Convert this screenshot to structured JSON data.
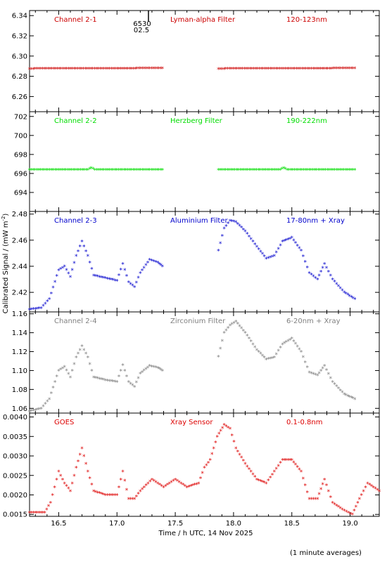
{
  "chart_data": {
    "type": "scatter",
    "x_label": "Time / h UTC, 14 Nov 2025",
    "y_label": "Calibrated Signal / (mW m",
    "y_label_sup": "-2",
    "y_label_end": ")",
    "footer": "(1 minute averages)",
    "xlim": [
      16.25,
      19.25
    ],
    "x_ticks": [
      "16.5",
      "17.0",
      "17.5",
      "18.0",
      "18.5",
      "19.0"
    ],
    "x_tick_values": [
      16.5,
      17.0,
      17.5,
      18.0,
      18.5,
      19.0
    ],
    "marker_text": [
      "6530",
      "02.5"
    ],
    "marker_x": 17.27,
    "panels": [
      {
        "id": "channel-2-1",
        "name": "Channel 2-1",
        "filter": "Lyman-alpha Filter",
        "band": "120-123nm",
        "color": "#cc0000",
        "ylim": [
          6.245,
          6.345
        ],
        "y_ticks": [
          "6.26",
          "6.28",
          "6.30",
          "6.32",
          "6.34"
        ],
        "y_tick_values": [
          6.26,
          6.28,
          6.3,
          6.32,
          6.34
        ],
        "series": [
          [
            [
              16.25,
              6.2875
            ],
            [
              16.6,
              6.2878
            ],
            [
              17.0,
              6.2878
            ],
            [
              17.39,
              6.288
            ]
          ],
          [
            [
              17.87,
              6.2875
            ],
            [
              18.3,
              6.2878
            ],
            [
              18.7,
              6.2878
            ],
            [
              19.04,
              6.288
            ]
          ]
        ]
      },
      {
        "id": "channel-2-2",
        "name": "Channel 2-2",
        "filter": "Herzberg Filter",
        "band": "190-222nm",
        "color": "#00dd00",
        "ylim": [
          692.0,
          702.5
        ],
        "y_ticks": [
          "694",
          "696",
          "698",
          "700",
          "702"
        ],
        "y_tick_values": [
          694,
          696,
          698,
          700,
          702
        ],
        "series": [
          [
            [
              16.25,
              696.4
            ],
            [
              16.75,
              696.4
            ],
            [
              16.78,
              696.6
            ],
            [
              16.81,
              696.4
            ],
            [
              17.39,
              696.4
            ]
          ],
          [
            [
              17.87,
              696.4
            ],
            [
              18.4,
              696.4
            ],
            [
              18.43,
              696.6
            ],
            [
              18.46,
              696.4
            ],
            [
              19.04,
              696.4
            ]
          ]
        ]
      },
      {
        "id": "channel-2-3",
        "name": "Channel 2-3",
        "filter": "Aluminium Filter",
        "band": "17-80nm + Xray",
        "color": "#0000cc",
        "ylim": [
          2.405,
          2.482
        ],
        "y_ticks": [
          "2.42",
          "2.44",
          "2.46",
          "2.48"
        ],
        "y_tick_values": [
          2.42,
          2.44,
          2.46,
          2.48
        ],
        "series": [
          [
            [
              16.25,
              2.407
            ],
            [
              16.35,
              2.408
            ],
            [
              16.42,
              2.415
            ],
            [
              16.5,
              2.437
            ],
            [
              16.55,
              2.44
            ],
            [
              16.6,
              2.432
            ],
            [
              16.65,
              2.448
            ],
            [
              16.7,
              2.459
            ],
            [
              16.75,
              2.448
            ],
            [
              16.8,
              2.433
            ],
            [
              16.9,
              2.431
            ],
            [
              17.0,
              2.429
            ],
            [
              17.05,
              2.442
            ],
            [
              17.1,
              2.428
            ],
            [
              17.15,
              2.424
            ],
            [
              17.2,
              2.435
            ],
            [
              17.28,
              2.445
            ],
            [
              17.35,
              2.443
            ],
            [
              17.39,
              2.44
            ]
          ],
          [
            [
              17.87,
              2.452
            ],
            [
              17.92,
              2.469
            ],
            [
              17.97,
              2.475
            ],
            [
              18.02,
              2.474
            ],
            [
              18.1,
              2.467
            ],
            [
              18.2,
              2.455
            ],
            [
              18.28,
              2.446
            ],
            [
              18.35,
              2.448
            ],
            [
              18.42,
              2.459
            ],
            [
              18.5,
              2.462
            ],
            [
              18.58,
              2.452
            ],
            [
              18.65,
              2.435
            ],
            [
              18.72,
              2.43
            ],
            [
              18.78,
              2.442
            ],
            [
              18.85,
              2.43
            ],
            [
              18.95,
              2.42
            ],
            [
              19.04,
              2.415
            ]
          ]
        ]
      },
      {
        "id": "channel-2-4",
        "name": "Channel 2-4",
        "filter": "Zirconium Filter",
        "band": "6-20nm + Xray",
        "color": "#808080",
        "ylim": [
          1.055,
          1.162
        ],
        "y_ticks": [
          "1.06",
          "1.08",
          "1.10",
          "1.12",
          "1.14",
          "1.16"
        ],
        "y_tick_values": [
          1.06,
          1.08,
          1.1,
          1.12,
          1.14,
          1.16
        ],
        "series": [
          [
            [
              16.25,
              1.057
            ],
            [
              16.35,
              1.06
            ],
            [
              16.42,
              1.07
            ],
            [
              16.5,
              1.1
            ],
            [
              16.55,
              1.104
            ],
            [
              16.6,
              1.093
            ],
            [
              16.65,
              1.114
            ],
            [
              16.7,
              1.126
            ],
            [
              16.75,
              1.114
            ],
            [
              16.8,
              1.093
            ],
            [
              16.9,
              1.09
            ],
            [
              17.0,
              1.088
            ],
            [
              17.05,
              1.106
            ],
            [
              17.1,
              1.088
            ],
            [
              17.15,
              1.083
            ],
            [
              17.2,
              1.097
            ],
            [
              17.28,
              1.105
            ],
            [
              17.35,
              1.103
            ],
            [
              17.39,
              1.1
            ]
          ],
          [
            [
              17.87,
              1.115
            ],
            [
              17.92,
              1.14
            ],
            [
              17.97,
              1.148
            ],
            [
              18.02,
              1.152
            ],
            [
              18.1,
              1.14
            ],
            [
              18.2,
              1.122
            ],
            [
              18.28,
              1.112
            ],
            [
              18.35,
              1.114
            ],
            [
              18.42,
              1.128
            ],
            [
              18.5,
              1.134
            ],
            [
              18.58,
              1.12
            ],
            [
              18.65,
              1.098
            ],
            [
              18.72,
              1.095
            ],
            [
              18.78,
              1.105
            ],
            [
              18.85,
              1.088
            ],
            [
              18.95,
              1.075
            ],
            [
              19.04,
              1.07
            ]
          ]
        ]
      },
      {
        "id": "goes",
        "name": "GOES",
        "filter": "Xray Sensor",
        "band": "0.1-0.8nm",
        "color": "#dd0000",
        "ylim": [
          0.00145,
          0.0041
        ],
        "y_ticks": [
          "0.0015",
          "0.0020",
          "0.0025",
          "0.0030",
          "0.0035",
          "0.0040"
        ],
        "y_tick_values": [
          0.0015,
          0.002,
          0.0025,
          0.003,
          0.0035,
          0.004
        ],
        "series": [
          [
            [
              16.25,
              0.00155
            ],
            [
              16.38,
              0.00155
            ],
            [
              16.43,
              0.0018
            ],
            [
              16.5,
              0.0026
            ],
            [
              16.55,
              0.0023
            ],
            [
              16.6,
              0.0021
            ],
            [
              16.65,
              0.0027
            ],
            [
              16.7,
              0.0032
            ],
            [
              16.75,
              0.0026
            ],
            [
              16.8,
              0.0021
            ],
            [
              16.9,
              0.002
            ],
            [
              17.0,
              0.002
            ],
            [
              17.05,
              0.0026
            ],
            [
              17.1,
              0.0019
            ],
            [
              17.15,
              0.0019
            ],
            [
              17.2,
              0.0021
            ],
            [
              17.3,
              0.0024
            ],
            [
              17.4,
              0.0022
            ],
            [
              17.5,
              0.0024
            ],
            [
              17.6,
              0.0022
            ],
            [
              17.7,
              0.0023
            ],
            [
              17.75,
              0.0027
            ],
            [
              17.8,
              0.0029
            ],
            [
              17.86,
              0.0035
            ],
            [
              17.92,
              0.0038
            ],
            [
              17.97,
              0.0037
            ],
            [
              18.02,
              0.0032
            ],
            [
              18.1,
              0.0028
            ],
            [
              18.2,
              0.0024
            ],
            [
              18.28,
              0.0023
            ],
            [
              18.35,
              0.0026
            ],
            [
              18.42,
              0.0029
            ],
            [
              18.5,
              0.0029
            ],
            [
              18.58,
              0.0026
            ],
            [
              18.65,
              0.0019
            ],
            [
              18.72,
              0.0019
            ],
            [
              18.78,
              0.0024
            ],
            [
              18.85,
              0.0018
            ],
            [
              18.95,
              0.0016
            ],
            [
              19.02,
              0.0015
            ],
            [
              19.08,
              0.0019
            ],
            [
              19.15,
              0.0023
            ],
            [
              19.25,
              0.0021
            ]
          ]
        ]
      }
    ]
  }
}
